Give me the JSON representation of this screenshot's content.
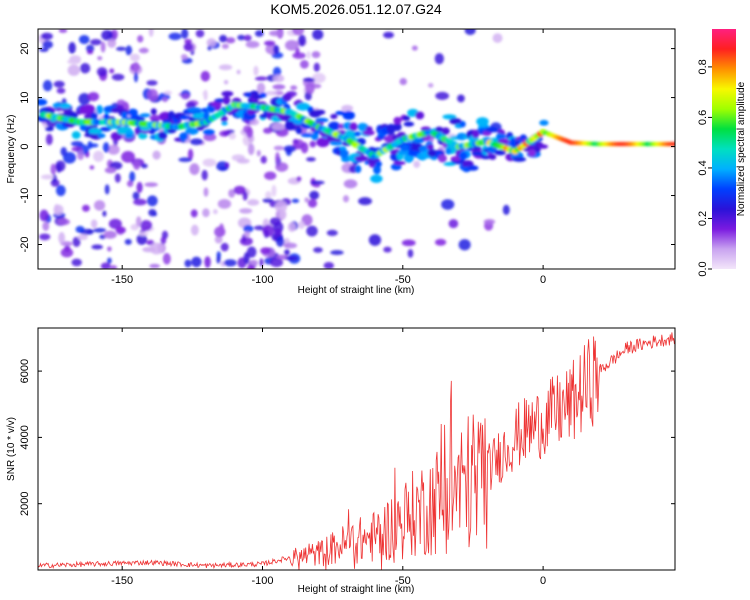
{
  "title": "KOM5.2026.051.12.07.G24",
  "chart_data": [
    {
      "type": "heatmap",
      "xlabel": "Height of straight line (km)",
      "ylabel": "Frequency (Hz)",
      "xlim": [
        -180,
        47
      ],
      "ylim": [
        -25,
        24
      ],
      "xticks": [
        -150,
        -100,
        -50,
        0
      ],
      "yticks": [
        -20,
        -10,
        0,
        10,
        20
      ],
      "colorbar": {
        "label": "Normalized spectral amplitude",
        "range": [
          0.0,
          0.95
        ],
        "ticks": [
          0.0,
          0.2,
          0.4,
          0.6,
          0.8
        ],
        "colors": [
          "#f3e6fa",
          "#c9a3f0",
          "#7a1ae0",
          "#2a12d8",
          "#0040ff",
          "#00b0ff",
          "#00e0c0",
          "#00e040",
          "#a0ff00",
          "#f8f800",
          "#ff9000",
          "#ff2020",
          "#ff2080"
        ]
      },
      "ridge": [
        {
          "x": -178,
          "f": 6.5
        },
        {
          "x": -165,
          "f": 5.0
        },
        {
          "x": -150,
          "f": 5.0
        },
        {
          "x": -140,
          "f": 4.5
        },
        {
          "x": -130,
          "f": 4.0
        },
        {
          "x": -120,
          "f": 5.0
        },
        {
          "x": -110,
          "f": 8.5
        },
        {
          "x": -100,
          "f": 8.0
        },
        {
          "x": -90,
          "f": 7.0
        },
        {
          "x": -80,
          "f": 4.0
        },
        {
          "x": -70,
          "f": 1.5
        },
        {
          "x": -60,
          "f": -2.0
        },
        {
          "x": -50,
          "f": 1.5
        },
        {
          "x": -40,
          "f": 3.0
        },
        {
          "x": -30,
          "f": 0.0
        },
        {
          "x": -20,
          "f": 1.0
        },
        {
          "x": -10,
          "f": -1.0
        },
        {
          "x": 0,
          "f": 3.0
        },
        {
          "x": 10,
          "f": 0.8
        },
        {
          "x": 20,
          "f": 0.5
        },
        {
          "x": 30,
          "f": 0.5
        },
        {
          "x": 47,
          "f": 0.5
        }
      ]
    },
    {
      "type": "line",
      "xlabel": "Height of straight line (km)",
      "ylabel": "SNR (10 * v/v)",
      "xlim": [
        -180,
        47
      ],
      "ylim": [
        0,
        7300
      ],
      "xticks": [
        -150,
        -100,
        -50,
        0
      ],
      "yticks": [
        2000,
        4000,
        6000
      ],
      "color": "#ee3333",
      "series": [
        {
          "name": "SNR",
          "x": [
            -180,
            -160,
            -140,
            -120,
            -100,
            -90,
            -80,
            -70,
            -60,
            -50,
            -40,
            -30,
            -20,
            -10,
            0,
            10,
            20,
            30,
            40,
            47
          ],
          "y": [
            100,
            150,
            200,
            100,
            150,
            350,
            500,
            800,
            1000,
            1500,
            2000,
            2500,
            3000,
            4000,
            4500,
            5000,
            6000,
            6700,
            6900,
            7000
          ]
        }
      ]
    }
  ]
}
